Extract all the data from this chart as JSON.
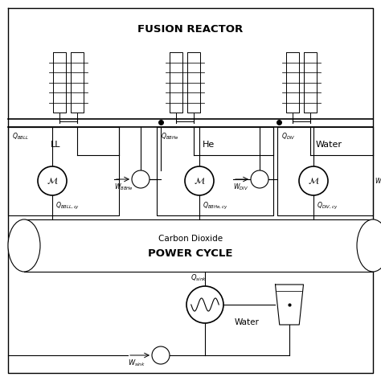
{
  "bg_color": "#ffffff",
  "line_color": "#000000",
  "title": "FUSION REACTOR",
  "power_cycle_label1": "Carbon Dioxide",
  "power_cycle_label2": "POWER CYCLE",
  "water_label": "Water",
  "ll_label": "LL",
  "he_label": "He",
  "water2_label": "Water",
  "W_label": "W"
}
